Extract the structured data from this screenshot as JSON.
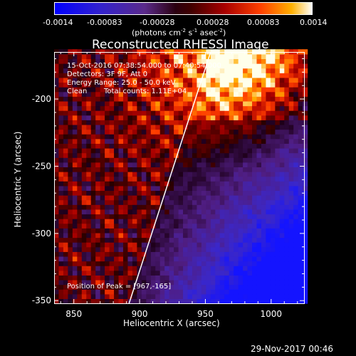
{
  "colorbar": {
    "ticks": [
      "-0.0014",
      "-0.00083",
      "-0.00028",
      "0.00028",
      "0.00083",
      "0.0014"
    ],
    "units_prefix": "(photons cm",
    "units_exp1": "-2",
    "units_mid1": " s",
    "units_exp2": "-1",
    "units_mid2": " asec",
    "units_exp3": "-2",
    "units_suffix": ")"
  },
  "chart_data": {
    "type": "heatmap",
    "title": "Reconstructed RHESSI Image",
    "xlabel": "Heliocentric X (arcsec)",
    "ylabel": "Heliocentric Y (arcsec)",
    "xlim": [
      835,
      1025
    ],
    "ylim": [
      -352,
      -165
    ],
    "x_ticks": [
      850,
      900,
      950,
      1000
    ],
    "y_ticks": [
      -200,
      -250,
      -300,
      -350
    ],
    "x_tick_labels": [
      "850",
      "900",
      "950",
      "1000"
    ],
    "y_tick_labels": [
      "-200",
      "-250",
      "-300",
      "-350"
    ],
    "value_range": [
      -0.0014,
      0.0014
    ],
    "limb_line": [
      [
        892,
        -352
      ],
      [
        954,
        -165
      ]
    ],
    "annotations": {
      "time": "15-Oct-2016 07:38:54.000 to 07:40:54.000",
      "detectors": "Detectors: 3F 9F, Att 0",
      "energy": "Energy Range: 25.0 - 50.0 keV",
      "clean": "Clean",
      "counts": "Total counts: 1.11E+04",
      "peak": "Position of Peak = [967,-165]"
    }
  },
  "footer": {
    "timestamp": "29-Nov-2017 00:46"
  }
}
